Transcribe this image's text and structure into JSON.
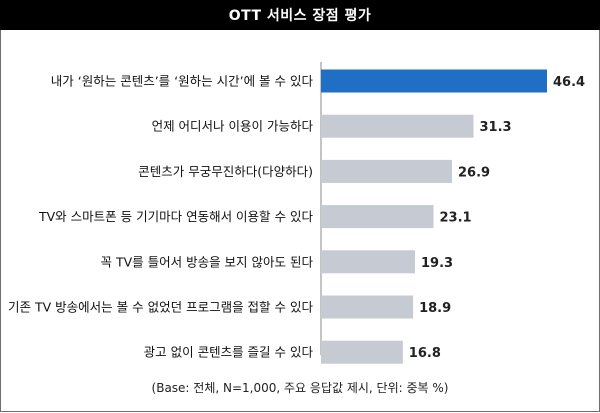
{
  "title": "OTT 서비스 장점 평가",
  "note": "(Base: 전체, N=1,000, 주요 응답값 제시, 단위: 중복 %)",
  "colors": {
    "highlight": "#1f6fc5",
    "bar": "#c5cad3",
    "axis": "#8a8a8a"
  },
  "chart_data": {
    "type": "bar",
    "orientation": "horizontal",
    "title": "OTT 서비스 장점 평가",
    "categories": [
      "내가 ‘원하는 콘텐츠’를 ‘원하는 시간’에 볼 수 있다",
      "언제 어디서나 이용이 가능하다",
      "콘텐츠가 무궁무진하다(다양하다)",
      "TV와 스마트폰 등 기기마다 연동해서 이용할 수 있다",
      "꼭 TV를 틀어서 방송을 보지 않아도 된다",
      "기존 TV 방송에서는 볼 수 없었던 프로그램을 접할 수 있다",
      "광고 없이 콘텐츠를 즐길 수 있다"
    ],
    "values": [
      46.4,
      31.3,
      26.9,
      23.1,
      19.3,
      18.9,
      16.8
    ],
    "value_labels": [
      "46.4",
      "31.3",
      "26.9",
      "23.1",
      "19.3",
      "18.9",
      "16.8"
    ],
    "highlight_index": 0,
    "xlim": [
      0,
      46.4
    ],
    "grid": false,
    "legend": "none"
  }
}
